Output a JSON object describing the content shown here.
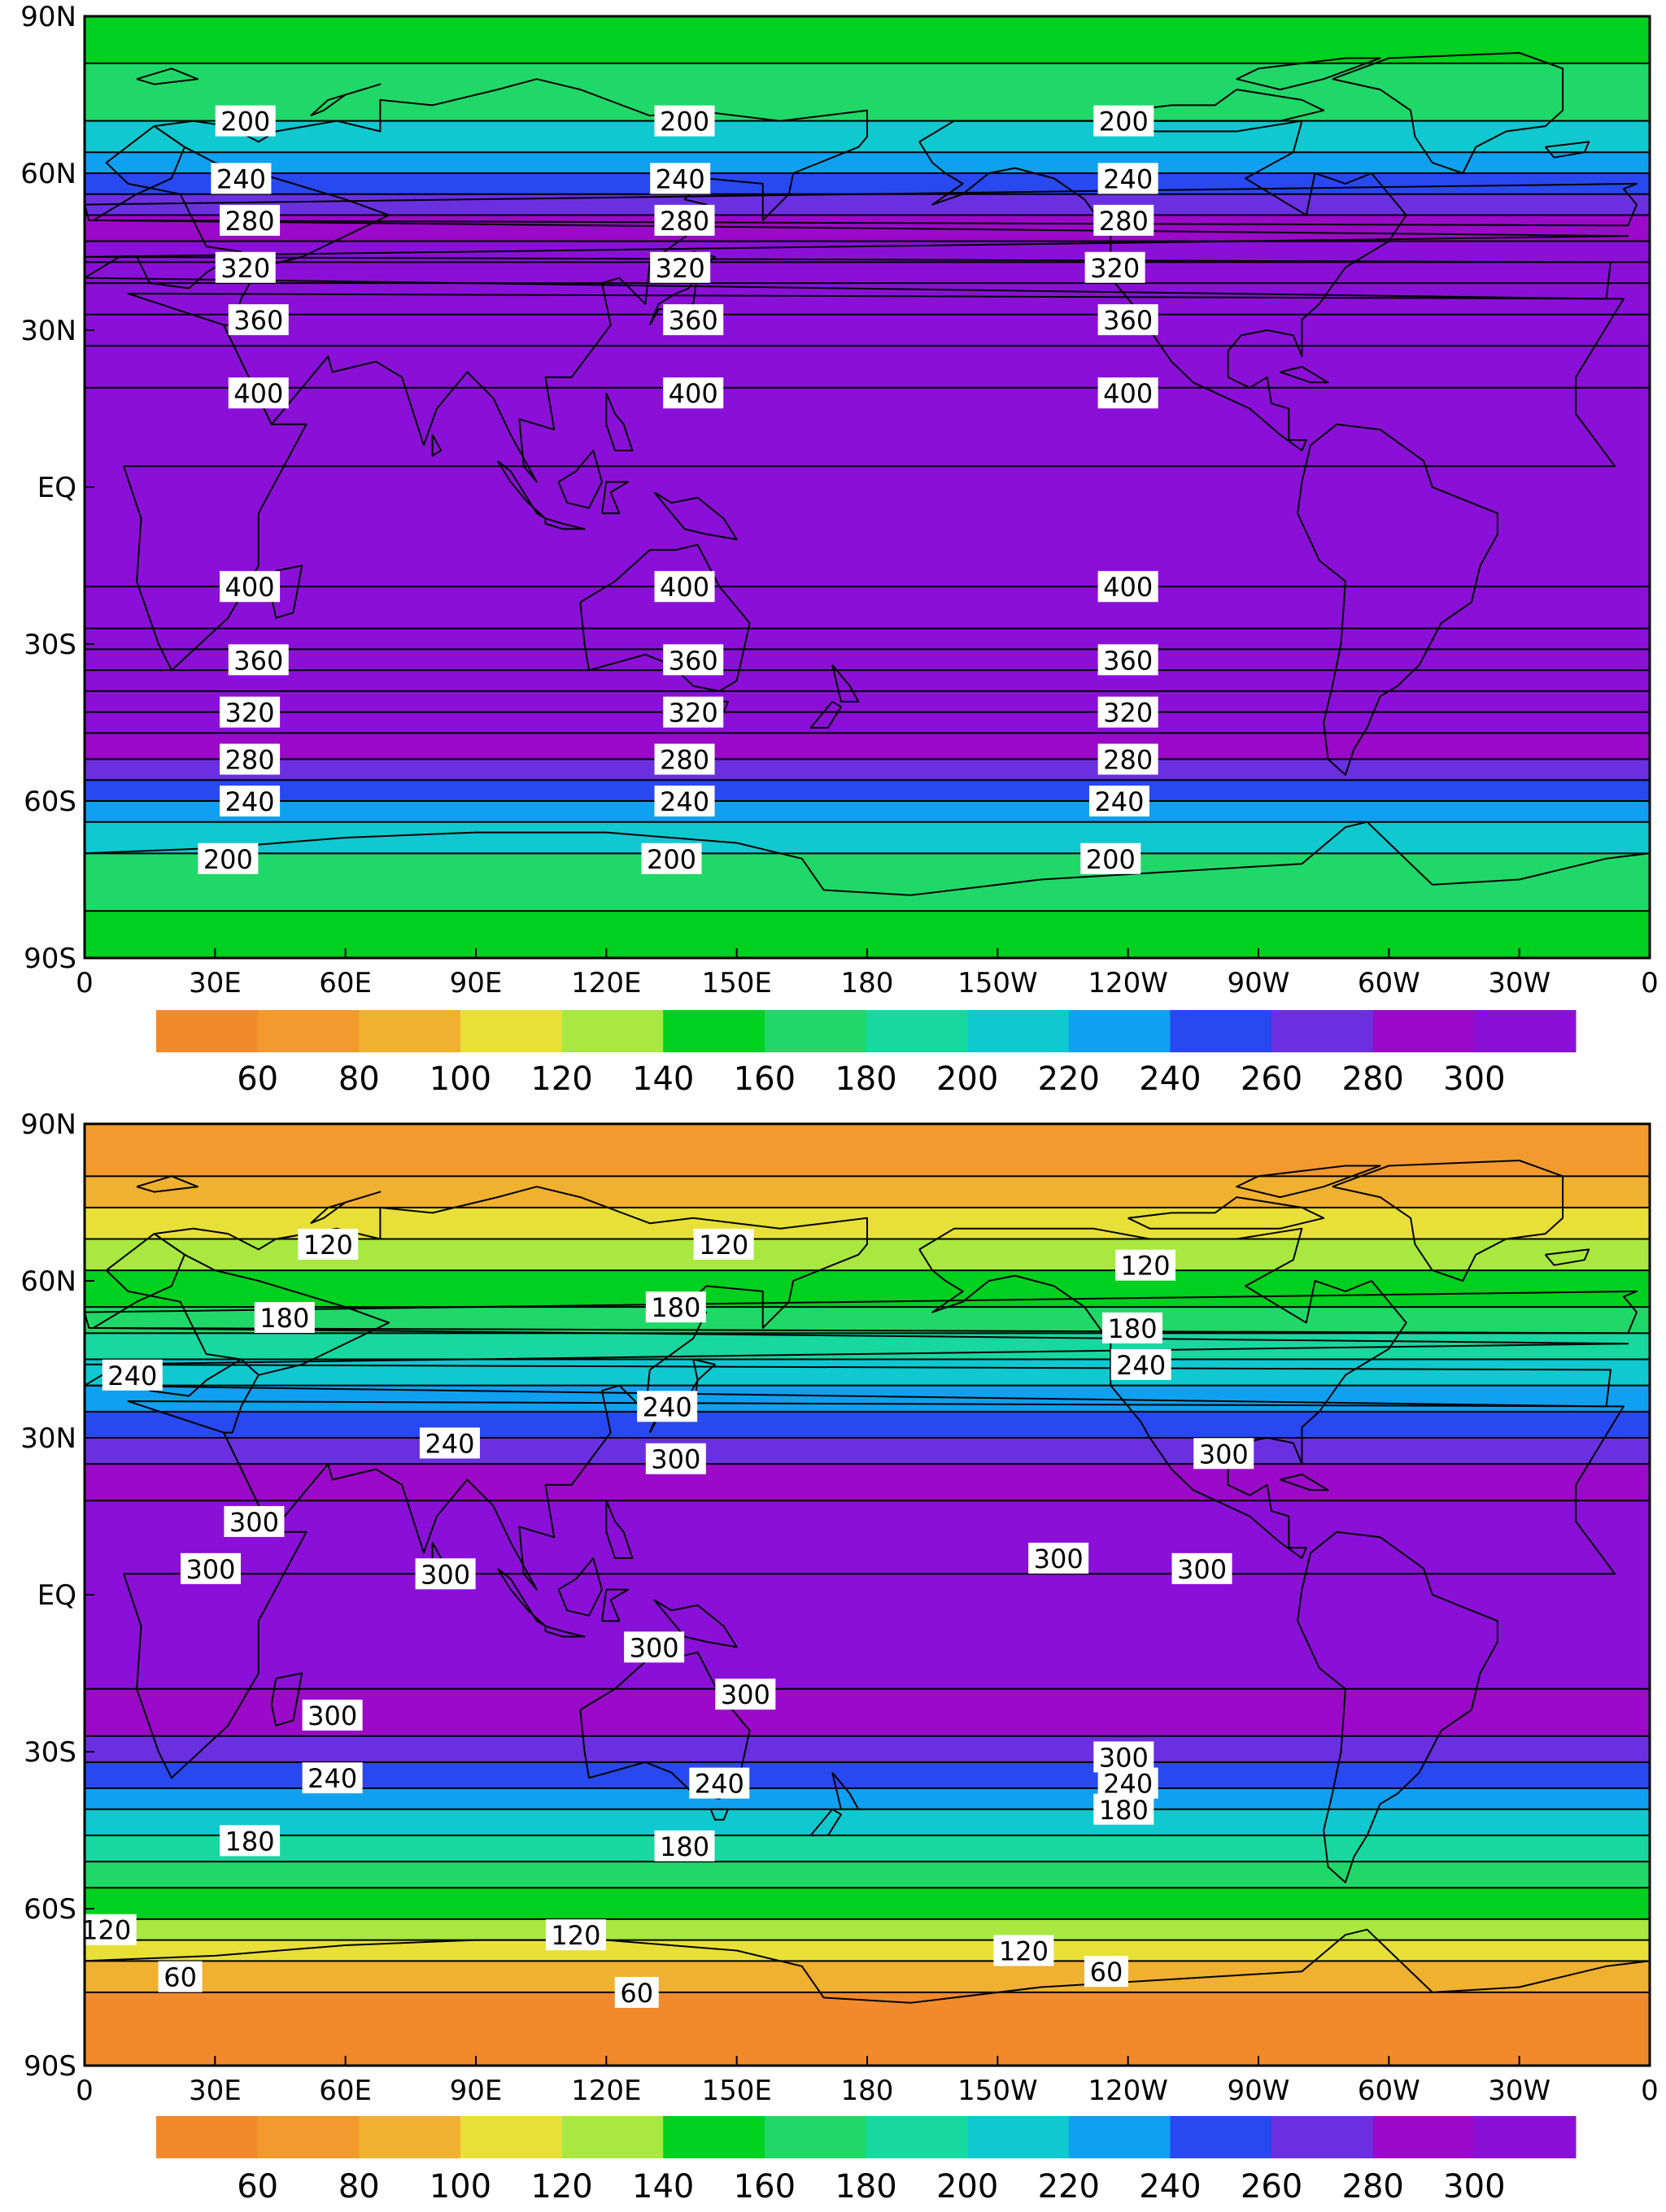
{
  "lon_ticks": [
    "0",
    "30E",
    "60E",
    "90E",
    "120E",
    "150E",
    "180",
    "150W",
    "120W",
    "90W",
    "60W",
    "30W",
    "0"
  ],
  "lat_ticks": [
    "90N",
    "60N",
    "30N",
    "EQ",
    "30S",
    "60S",
    "90S"
  ],
  "colorbar": {
    "colors": [
      "#f08a2c",
      "#f29a2e",
      "#f0b030",
      "#e8e038",
      "#a8e840",
      "#00d020",
      "#20d868",
      "#18d8a0",
      "#10c8d0",
      "#10a0f0",
      "#2848f0",
      "#6a30e0",
      "#9a0ac8",
      "#8a10d8"
    ],
    "tick_labels": [
      "60",
      "80",
      "100",
      "120",
      "140",
      "160",
      "180",
      "200",
      "220",
      "240",
      "260",
      "280",
      "300"
    ]
  },
  "panels": [
    {
      "name": "top",
      "description_type": "zonally uniform field",
      "bands": [
        {
          "from_lat": 90,
          "to_lat": 81,
          "color": "#00d020"
        },
        {
          "from_lat": 81,
          "to_lat": 70,
          "color": "#20d868"
        },
        {
          "from_lat": 70,
          "to_lat": 64,
          "color": "#10c8d0"
        },
        {
          "from_lat": 64,
          "to_lat": 60,
          "color": "#10a0f0"
        },
        {
          "from_lat": 60,
          "to_lat": 56,
          "color": "#2848f0"
        },
        {
          "from_lat": 56,
          "to_lat": 52,
          "color": "#6a30e0"
        },
        {
          "from_lat": 52,
          "to_lat": 47,
          "color": "#9a0ac8"
        },
        {
          "from_lat": 47,
          "to_lat": -47,
          "color": "#8a10d8"
        },
        {
          "from_lat": -47,
          "to_lat": -52,
          "color": "#9a0ac8"
        },
        {
          "from_lat": -52,
          "to_lat": -56,
          "color": "#6a30e0"
        },
        {
          "from_lat": -56,
          "to_lat": -60,
          "color": "#2848f0"
        },
        {
          "from_lat": -60,
          "to_lat": -64,
          "color": "#10a0f0"
        },
        {
          "from_lat": -64,
          "to_lat": -70,
          "color": "#10c8d0"
        },
        {
          "from_lat": -70,
          "to_lat": -81,
          "color": "#20d868"
        },
        {
          "from_lat": -81,
          "to_lat": -90,
          "color": "#00d020"
        }
      ],
      "contour_lats": [
        81,
        70,
        64,
        60,
        56,
        52,
        47,
        43,
        39,
        33,
        27,
        19,
        -19,
        -27,
        -31,
        -35,
        -39,
        -43,
        -47,
        -52,
        -56,
        -60,
        -64,
        -70,
        -81
      ],
      "labels": [
        {
          "text": "200",
          "lon": 37,
          "lat": 70
        },
        {
          "text": "200",
          "lon": 138,
          "lat": 70
        },
        {
          "text": "200",
          "lon": 239,
          "lat": 70
        },
        {
          "text": "240",
          "lon": 36,
          "lat": 59
        },
        {
          "text": "240",
          "lon": 137,
          "lat": 59
        },
        {
          "text": "240",
          "lon": 240,
          "lat": 59
        },
        {
          "text": "280",
          "lon": 38,
          "lat": 51
        },
        {
          "text": "280",
          "lon": 138,
          "lat": 51
        },
        {
          "text": "280",
          "lon": 239,
          "lat": 51
        },
        {
          "text": "320",
          "lon": 37,
          "lat": 42
        },
        {
          "text": "320",
          "lon": 137,
          "lat": 42
        },
        {
          "text": "320",
          "lon": 237,
          "lat": 42
        },
        {
          "text": "360",
          "lon": 40,
          "lat": 32
        },
        {
          "text": "360",
          "lon": 140,
          "lat": 32
        },
        {
          "text": "360",
          "lon": 240,
          "lat": 32
        },
        {
          "text": "400",
          "lon": 40,
          "lat": 18
        },
        {
          "text": "400",
          "lon": 140,
          "lat": 18
        },
        {
          "text": "400",
          "lon": 240,
          "lat": 18
        },
        {
          "text": "400",
          "lon": 38,
          "lat": -19
        },
        {
          "text": "400",
          "lon": 138,
          "lat": -19
        },
        {
          "text": "400",
          "lon": 240,
          "lat": -19
        },
        {
          "text": "360",
          "lon": 40,
          "lat": -33
        },
        {
          "text": "360",
          "lon": 140,
          "lat": -33
        },
        {
          "text": "360",
          "lon": 240,
          "lat": -33
        },
        {
          "text": "320",
          "lon": 38,
          "lat": -43
        },
        {
          "text": "320",
          "lon": 140,
          "lat": -43
        },
        {
          "text": "320",
          "lon": 240,
          "lat": -43
        },
        {
          "text": "280",
          "lon": 38,
          "lat": -52
        },
        {
          "text": "280",
          "lon": 138,
          "lat": -52
        },
        {
          "text": "280",
          "lon": 240,
          "lat": -52
        },
        {
          "text": "240",
          "lon": 38,
          "lat": -60
        },
        {
          "text": "240",
          "lon": 138,
          "lat": -60
        },
        {
          "text": "240",
          "lon": 238,
          "lat": -60
        },
        {
          "text": "200",
          "lon": 33,
          "lat": -71
        },
        {
          "text": "200",
          "lon": 135,
          "lat": -71
        },
        {
          "text": "200",
          "lon": 236,
          "lat": -71
        }
      ]
    },
    {
      "name": "bottom",
      "description_type": "observed-like field",
      "bands": [
        {
          "from_lat": 90,
          "to_lat": 80,
          "color": "#f29a2e"
        },
        {
          "from_lat": 80,
          "to_lat": 74,
          "color": "#f0b030"
        },
        {
          "from_lat": 74,
          "to_lat": 68,
          "color": "#e8e038"
        },
        {
          "from_lat": 68,
          "to_lat": 62,
          "color": "#a8e840"
        },
        {
          "from_lat": 62,
          "to_lat": 55,
          "color": "#00d020"
        },
        {
          "from_lat": 55,
          "to_lat": 50,
          "color": "#20d868"
        },
        {
          "from_lat": 50,
          "to_lat": 45,
          "color": "#18d8a0"
        },
        {
          "from_lat": 45,
          "to_lat": 40,
          "color": "#10c8d0"
        },
        {
          "from_lat": 40,
          "to_lat": 35,
          "color": "#10a0f0"
        },
        {
          "from_lat": 35,
          "to_lat": 30,
          "color": "#2848f0"
        },
        {
          "from_lat": 30,
          "to_lat": 25,
          "color": "#6a30e0"
        },
        {
          "from_lat": 25,
          "to_lat": 18,
          "color": "#9a0ac8"
        },
        {
          "from_lat": 18,
          "to_lat": -18,
          "color": "#8a10d8"
        },
        {
          "from_lat": -18,
          "to_lat": -27,
          "color": "#9a0ac8"
        },
        {
          "from_lat": -27,
          "to_lat": -32,
          "color": "#6a30e0"
        },
        {
          "from_lat": -32,
          "to_lat": -37,
          "color": "#2848f0"
        },
        {
          "from_lat": -37,
          "to_lat": -41,
          "color": "#10a0f0"
        },
        {
          "from_lat": -41,
          "to_lat": -46,
          "color": "#10c8d0"
        },
        {
          "from_lat": -46,
          "to_lat": -51,
          "color": "#18d8a0"
        },
        {
          "from_lat": -51,
          "to_lat": -56,
          "color": "#20d868"
        },
        {
          "from_lat": -56,
          "to_lat": -62,
          "color": "#00d020"
        },
        {
          "from_lat": -62,
          "to_lat": -66,
          "color": "#a8e840"
        },
        {
          "from_lat": -66,
          "to_lat": -70,
          "color": "#e8e038"
        },
        {
          "from_lat": -70,
          "to_lat": -76,
          "color": "#f0b030"
        },
        {
          "from_lat": -76,
          "to_lat": -90,
          "color": "#f08a2c"
        }
      ],
      "contour_lats": [
        80,
        74,
        68,
        62,
        55,
        50,
        45,
        40,
        35,
        30,
        25,
        18,
        -18,
        -27,
        -32,
        -37,
        -41,
        -46,
        -51,
        -56,
        -62,
        -66,
        -70,
        -76
      ],
      "labels": [
        {
          "text": "120",
          "lon": 56,
          "lat": 67
        },
        {
          "text": "120",
          "lon": 147,
          "lat": 67
        },
        {
          "text": "120",
          "lon": 244,
          "lat": 63
        },
        {
          "text": "180",
          "lon": 46,
          "lat": 53
        },
        {
          "text": "180",
          "lon": 136,
          "lat": 55
        },
        {
          "text": "180",
          "lon": 241,
          "lat": 51
        },
        {
          "text": "240",
          "lon": 11,
          "lat": 42
        },
        {
          "text": "240",
          "lon": 134,
          "lat": 36
        },
        {
          "text": "240",
          "lon": 243,
          "lat": 44
        },
        {
          "text": "240",
          "lon": 84,
          "lat": 29
        },
        {
          "text": "300",
          "lon": 136,
          "lat": 26
        },
        {
          "text": "300",
          "lon": 262,
          "lat": 27
        },
        {
          "text": "300",
          "lon": 39,
          "lat": 14
        },
        {
          "text": "300",
          "lon": 29,
          "lat": 5
        },
        {
          "text": "300",
          "lon": 83,
          "lat": 4
        },
        {
          "text": "300",
          "lon": 224,
          "lat": 7
        },
        {
          "text": "300",
          "lon": 257,
          "lat": 5
        },
        {
          "text": "300",
          "lon": 131,
          "lat": -10
        },
        {
          "text": "300",
          "lon": 152,
          "lat": -19
        },
        {
          "text": "300",
          "lon": 57,
          "lat": -23
        },
        {
          "text": "300",
          "lon": 239,
          "lat": -31
        },
        {
          "text": "240",
          "lon": 57,
          "lat": -35
        },
        {
          "text": "240",
          "lon": 146,
          "lat": -36
        },
        {
          "text": "240",
          "lon": 240,
          "lat": -36
        },
        {
          "text": "180",
          "lon": 38,
          "lat": -47
        },
        {
          "text": "180",
          "lon": 138,
          "lat": -48
        },
        {
          "text": "180",
          "lon": 239,
          "lat": -41
        },
        {
          "text": "120",
          "lon": 5,
          "lat": -64
        },
        {
          "text": "120",
          "lon": 113,
          "lat": -65
        },
        {
          "text": "120",
          "lon": 216,
          "lat": -68
        },
        {
          "text": "60",
          "lon": 22,
          "lat": -73
        },
        {
          "text": "60",
          "lon": 127,
          "lat": -76
        },
        {
          "text": "60",
          "lon": 235,
          "lat": -72
        }
      ]
    }
  ]
}
